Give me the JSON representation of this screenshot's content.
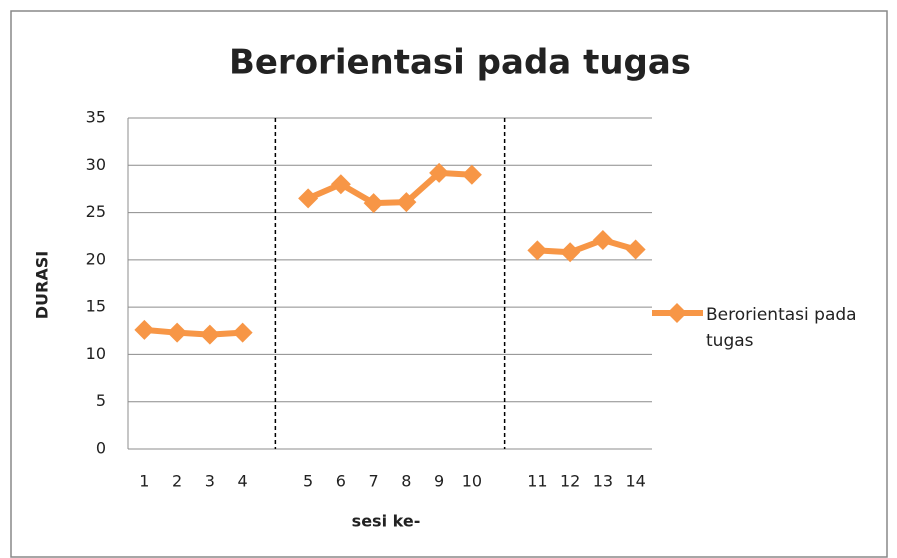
{
  "chart_data": {
    "type": "line",
    "title": "Berorientasi pada tugas",
    "x_label": "sesi ke-",
    "y_label": "DURASI",
    "categories": [
      "1",
      "2",
      "3",
      "4",
      null,
      "5",
      "6",
      "7",
      "8",
      "9",
      "10",
      null,
      "11",
      "12",
      "13",
      "14"
    ],
    "series": [
      {
        "name": "Berorientasi pada tugas",
        "color": "#f79646",
        "values": [
          12.6,
          12.3,
          12.1,
          12.3,
          null,
          26.5,
          28.0,
          26.0,
          26.1,
          29.2,
          29.0,
          null,
          21.0,
          20.8,
          22.1,
          21.1
        ]
      }
    ],
    "ylim": [
      0,
      35
    ],
    "yticks": [
      0,
      5,
      10,
      15,
      20,
      25,
      30,
      35
    ],
    "grid": true,
    "legend": "right"
  }
}
